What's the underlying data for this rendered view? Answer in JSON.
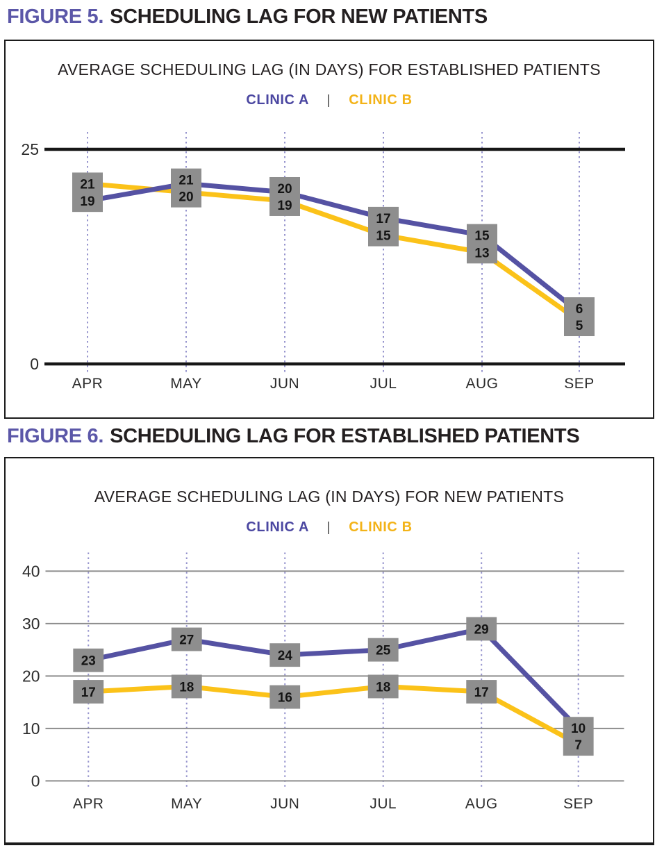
{
  "figures": [
    {
      "caption_prefix": "FIGURE 5.",
      "caption_title": "SCHEDULING LAG FOR NEW PATIENTS",
      "legend_separator": "|"
    },
    {
      "caption_prefix": "FIGURE 6.",
      "caption_title": "SCHEDULING LAG FOR ESTABLISHED PATIENTS",
      "legend_separator": "|"
    }
  ],
  "colors": {
    "caption_accent": "#5B57A8",
    "title_text": "#231F20",
    "clinic_a_line": "#5552A3",
    "clinic_b_line": "#FBC219",
    "clinic_a_legend": "#4B47A1",
    "clinic_b_legend": "#F3B318",
    "label_box": "#8E8E8E",
    "label_text": "#141414",
    "axis_black": "#161616",
    "gridline_gray": "#8C8C8C",
    "dotted_line": "#9795CE",
    "axis_label_text": "#2C2C2C"
  },
  "chart_data": [
    {
      "type": "line",
      "title": "AVERAGE SCHEDULING LAG (IN DAYS) FOR ESTABLISHED PATIENTS",
      "categories": [
        "APR",
        "MAY",
        "JUN",
        "JUL",
        "AUG",
        "SEP"
      ],
      "series": [
        {
          "name": "CLINIC A",
          "color": "#5552A3",
          "values": [
            19,
            21,
            20,
            17,
            15,
            6
          ]
        },
        {
          "name": "CLINIC B",
          "color": "#FBC219",
          "values": [
            21,
            20,
            19,
            15,
            13,
            5
          ]
        }
      ],
      "xlabel": "",
      "ylabel": "",
      "ylim": [
        0,
        25
      ],
      "yticks": [
        25,
        0
      ],
      "grid": "thick black horizontal rules at 25 and 0; dotted vertical purple gridlines at each month",
      "legend_position": "top-center",
      "value_labels": "gray boxed labels, both series values stacked in one box per month",
      "label_groups": [
        true,
        true,
        true,
        true,
        true,
        true
      ]
    },
    {
      "type": "line",
      "title": "AVERAGE SCHEDULING LAG (IN DAYS) FOR NEW PATIENTS",
      "categories": [
        "APR",
        "MAY",
        "JUN",
        "JUL",
        "AUG",
        "SEP"
      ],
      "series": [
        {
          "name": "CLINIC A",
          "color": "#5552A3",
          "values": [
            23,
            27,
            24,
            25,
            29,
            10
          ]
        },
        {
          "name": "CLINIC B",
          "color": "#FBC219",
          "values": [
            17,
            18,
            16,
            18,
            17,
            7
          ]
        }
      ],
      "xlabel": "",
      "ylabel": "",
      "ylim": [
        0,
        40
      ],
      "yticks": [
        40,
        30,
        20,
        10,
        0
      ],
      "grid": "thin gray horizontal gridlines every 10; dotted vertical purple gridlines at each month",
      "legend_position": "top-center",
      "value_labels": "gray boxed labels, one box per point (shared box at SEP)",
      "label_groups": [
        false,
        false,
        false,
        false,
        false,
        true
      ]
    }
  ]
}
